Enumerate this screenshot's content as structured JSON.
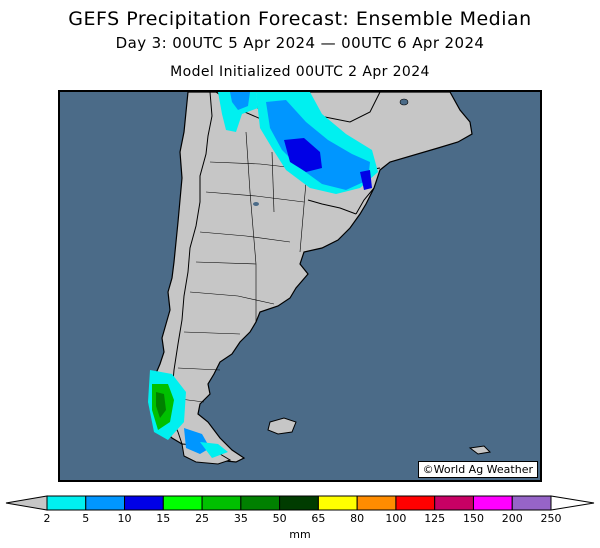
{
  "title": "GEFS Precipitation Forecast: Ensemble Median",
  "subtitle": "Day 3: 00UTC 5 Apr 2024 — 00UTC 6 Apr 2024",
  "init": "Model Initialized 00UTC 2 Apr 2024",
  "credit": "©World Ag Weather",
  "colors": {
    "ocean": "#4b6b88",
    "land": "#c6c6c6",
    "border": "#000000"
  },
  "legend": {
    "units": "mm",
    "ticks": [
      "2",
      "5",
      "10",
      "15",
      "25",
      "35",
      "50",
      "65",
      "80",
      "100",
      "125",
      "150",
      "200",
      "250"
    ],
    "bins": [
      {
        "color": "#00f0f0"
      },
      {
        "color": "#0096ff"
      },
      {
        "color": "#0000e6"
      },
      {
        "color": "#00ff00"
      },
      {
        "color": "#00c000"
      },
      {
        "color": "#008000"
      },
      {
        "color": "#003c00"
      },
      {
        "color": "#ffff00"
      },
      {
        "color": "#ff8c00"
      },
      {
        "color": "#ff0000"
      },
      {
        "color": "#c80064"
      },
      {
        "color": "#ff00ff"
      },
      {
        "color": "#9664c8"
      }
    ],
    "under_color": "#c6c6c6",
    "over_color": "#ffffff"
  }
}
